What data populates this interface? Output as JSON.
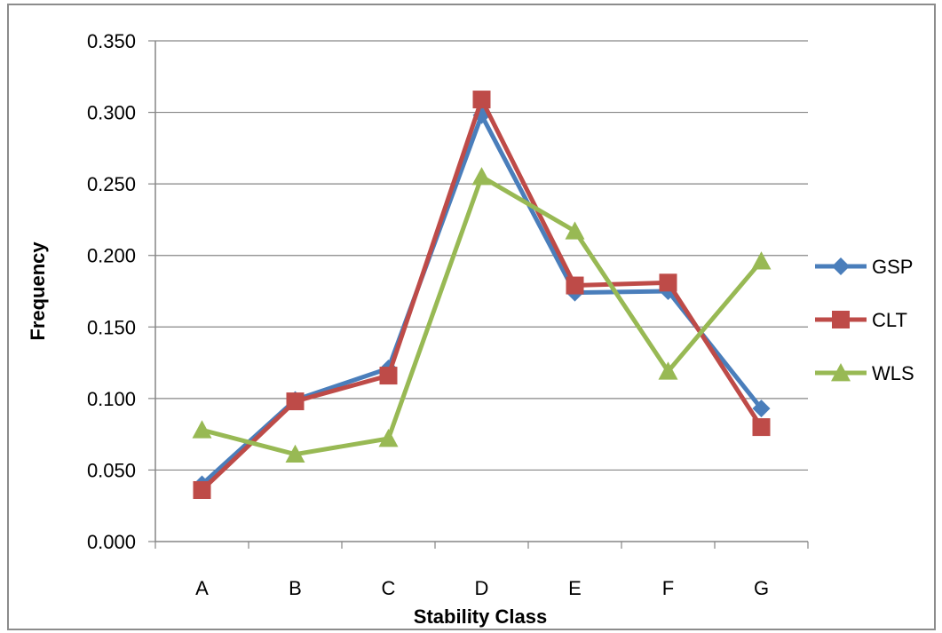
{
  "chart_data": {
    "type": "line",
    "title": "",
    "xlabel": "Stability Class",
    "ylabel": "Frequency",
    "categories": [
      "A",
      "B",
      "C",
      "D",
      "E",
      "F",
      "G"
    ],
    "ylim": [
      0,
      0.35
    ],
    "yticks": [
      "0.000",
      "0.050",
      "0.100",
      "0.150",
      "0.200",
      "0.250",
      "0.300",
      "0.350"
    ],
    "ytick_values": [
      0,
      0.05,
      0.1,
      0.15,
      0.2,
      0.25,
      0.3,
      0.35
    ],
    "grid": "horizontal",
    "legend_position": "right",
    "series": [
      {
        "name": "GSP",
        "color": "#4a7ebb",
        "marker": "diamond",
        "values": [
          0.04,
          0.099,
          0.121,
          0.298,
          0.174,
          0.175,
          0.093
        ]
      },
      {
        "name": "CLT",
        "color": "#be4b48",
        "marker": "square",
        "values": [
          0.036,
          0.098,
          0.116,
          0.309,
          0.179,
          0.181,
          0.08
        ]
      },
      {
        "name": "WLS",
        "color": "#98b954",
        "marker": "triangle",
        "values": [
          0.078,
          0.061,
          0.072,
          0.255,
          0.217,
          0.119,
          0.196
        ]
      }
    ]
  }
}
